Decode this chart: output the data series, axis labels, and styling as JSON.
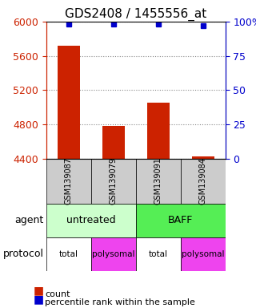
{
  "title": "GDS2408 / 1455556_at",
  "samples": [
    "GSM139087",
    "GSM139079",
    "GSM139091",
    "GSM139084"
  ],
  "counts": [
    5720,
    4780,
    5050,
    4430
  ],
  "percentile_ranks": [
    98,
    98,
    98,
    97
  ],
  "ylim_left": [
    4400,
    6000
  ],
  "ylim_right": [
    0,
    100
  ],
  "yticks_left": [
    4400,
    4800,
    5200,
    5600,
    6000
  ],
  "yticks_right": [
    0,
    25,
    50,
    75,
    100
  ],
  "ytick_labels_right": [
    "0",
    "25",
    "50",
    "75",
    "100%"
  ],
  "bar_color": "#cc2200",
  "dot_color": "#0000cc",
  "agent_labels": [
    [
      "untreated",
      2
    ],
    [
      "BAFF",
      2
    ]
  ],
  "agent_colors": [
    "#ccffcc",
    "#55ee55"
  ],
  "protocol_labels": [
    "total",
    "polysomal",
    "total",
    "polysomal"
  ],
  "protocol_colors": [
    "#ffffff",
    "#ee44ee",
    "#ffffff",
    "#ee44ee"
  ],
  "sample_box_color": "#cccccc",
  "legend_count_color": "#cc2200",
  "legend_pct_color": "#0000cc",
  "grid_color": "#888888",
  "title_fontsize": 11,
  "tick_fontsize": 9,
  "label_fontsize": 9
}
